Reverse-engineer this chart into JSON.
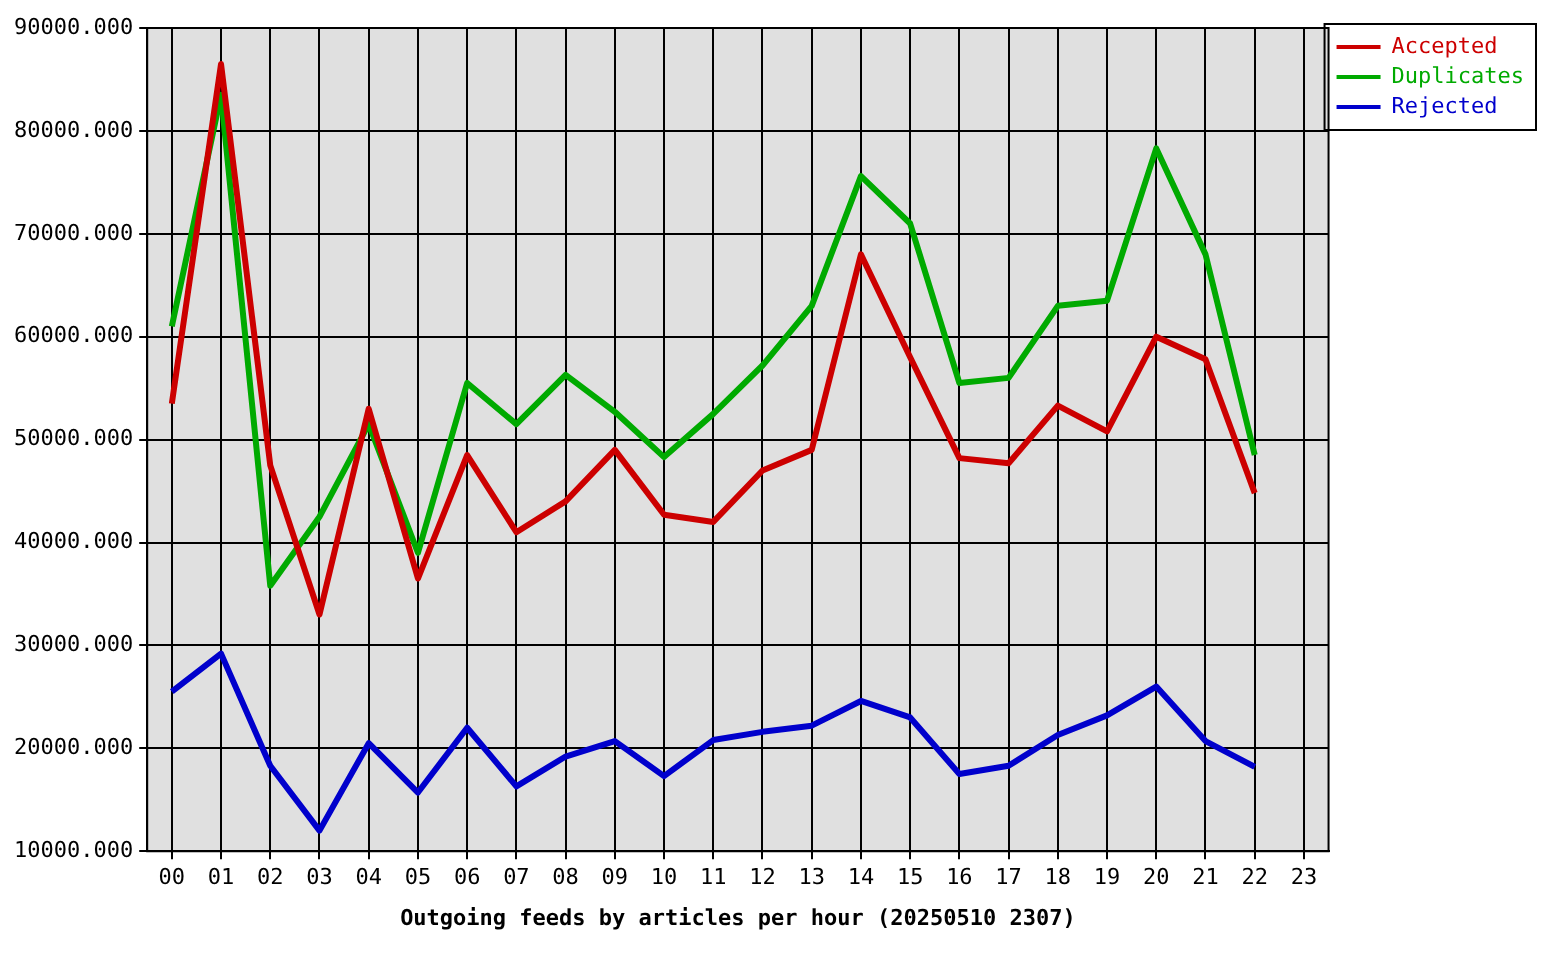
{
  "chart_data": {
    "type": "line",
    "xlabel": "Outgoing feeds by articles per hour (20250510 2307)",
    "categories": [
      "00",
      "01",
      "02",
      "03",
      "04",
      "05",
      "06",
      "07",
      "08",
      "09",
      "10",
      "11",
      "12",
      "13",
      "14",
      "15",
      "16",
      "17",
      "18",
      "19",
      "20",
      "21",
      "22",
      "23"
    ],
    "series": [
      {
        "name": "Accepted",
        "color": "#cc0000",
        "values": [
          53500,
          86500,
          47500,
          33000,
          53000,
          36500,
          48500,
          41000,
          44000,
          49000,
          42700,
          42000,
          47000,
          49000,
          68000,
          58000,
          48200,
          47700,
          53300,
          50800,
          60000,
          57800,
          44800,
          null
        ]
      },
      {
        "name": "Duplicates",
        "color": "#00aa00",
        "values": [
          61000,
          83500,
          35800,
          42500,
          51500,
          39000,
          55500,
          51500,
          56300,
          52700,
          48300,
          52500,
          57200,
          63000,
          75600,
          71000,
          55500,
          56000,
          63000,
          63500,
          78300,
          68000,
          48500,
          null
        ]
      },
      {
        "name": "Rejected",
        "color": "#0000cc",
        "values": [
          25500,
          29200,
          18300,
          12000,
          20500,
          15700,
          22000,
          16300,
          19200,
          20700,
          17300,
          20800,
          21600,
          22200,
          24600,
          23000,
          17500,
          18300,
          21300,
          23200,
          26000,
          20700,
          18200,
          null
        ]
      }
    ],
    "ylim": [
      10000,
      90000
    ],
    "yticks": [
      {
        "value": 10000,
        "label": "10000.000"
      },
      {
        "value": 20000,
        "label": "20000.000"
      },
      {
        "value": 30000,
        "label": "30000.000"
      },
      {
        "value": 40000,
        "label": "40000.000"
      },
      {
        "value": 50000,
        "label": "50000.000"
      },
      {
        "value": 60000,
        "label": "60000.000"
      },
      {
        "value": 70000,
        "label": "70000.000"
      },
      {
        "value": 80000,
        "label": "80000.000"
      },
      {
        "value": 90000,
        "label": "90000.000"
      }
    ],
    "grid": true,
    "legend": "top right",
    "marker": "none",
    "line_style": "solid"
  }
}
